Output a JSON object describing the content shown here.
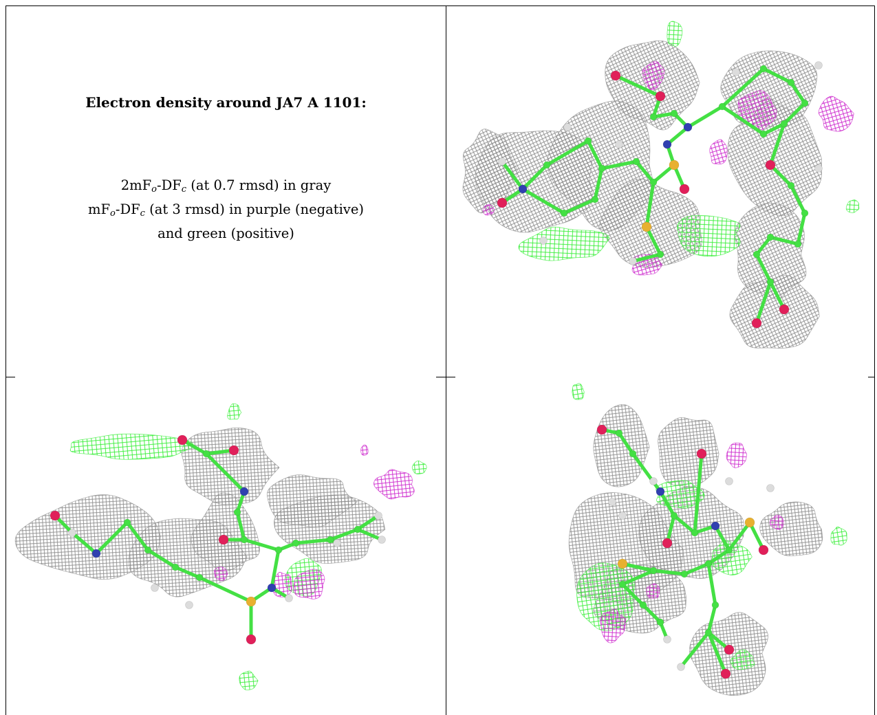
{
  "caption": {
    "title": "Electron density around JA7 A 1101:",
    "line1_prefix": "2mF",
    "line1_sub1": "o",
    "line1_mid": "-DF",
    "line1_sub2": "c",
    "line1_suffix": " (at 0.7 rmsd) in gray",
    "line2_prefix": "mF",
    "line2_sub1": "o",
    "line2_mid": "-DF",
    "line2_sub2": "c",
    "line2_suffix": " (at 3 rmsd) in purple (negative)",
    "line3": "and green (positive)"
  },
  "colors": {
    "map_2fofc": "#8c8c8c",
    "map_positive": "#33ee33",
    "map_negative": "#cc22cc",
    "carbon": "#44e044",
    "oxygen": "#e0205a",
    "nitrogen": "#3040b0",
    "sulfur": "#e8b030",
    "hydrogen": "#dcdcdc"
  }
}
